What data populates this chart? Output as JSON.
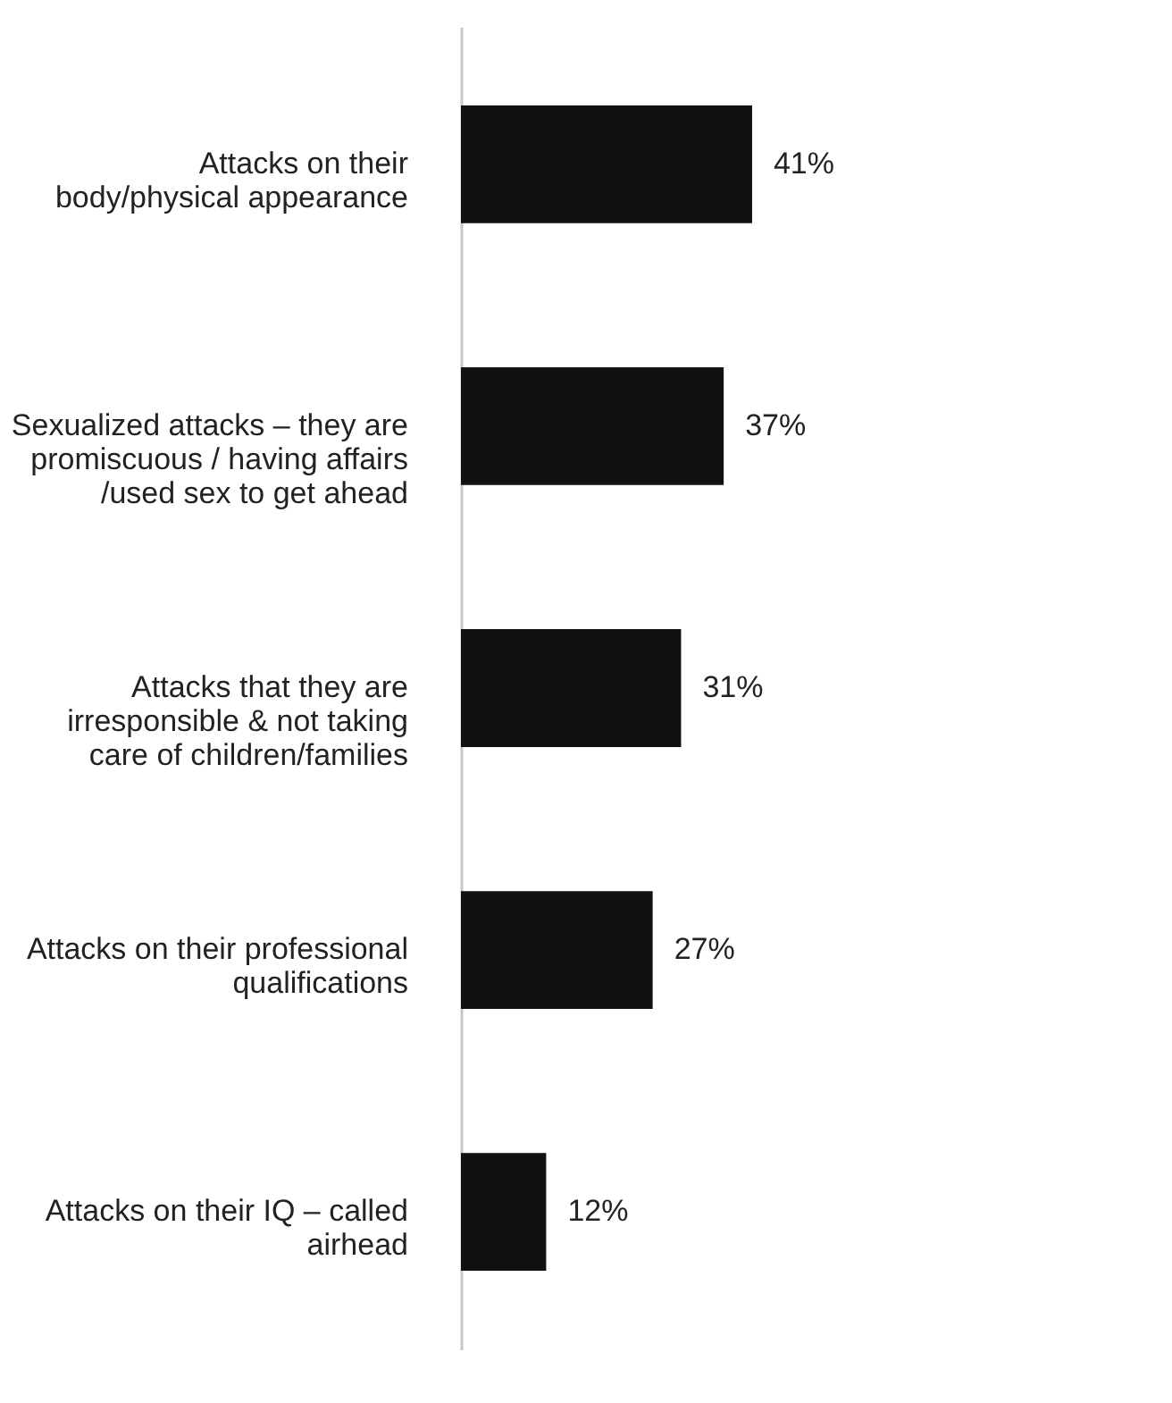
{
  "chart_data": {
    "type": "bar",
    "orientation": "horizontal",
    "categories": [
      "Attacks on their body/physical appearance",
      "Sexualized attacks – they are promiscuous / having affairs /used sex to get ahead",
      "Attacks that they are irresponsible & not taking care of children/families",
      "Attacks on their professional qualifications",
      "Attacks on their IQ – called airhead"
    ],
    "values": [
      41,
      37,
      31,
      27,
      12
    ],
    "value_labels": [
      "41%",
      "37%",
      "31%",
      "27%",
      "12%"
    ],
    "color": "#111111",
    "grid": false
  }
}
